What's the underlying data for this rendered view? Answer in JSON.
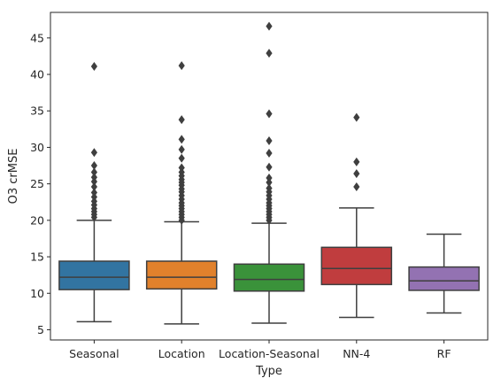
{
  "chart_data": {
    "type": "box",
    "xlabel": "Type",
    "ylabel": "O3 crMSE",
    "ylim": [
      3.6,
      48.5
    ],
    "yticks": [
      5,
      10,
      15,
      20,
      25,
      30,
      35,
      40,
      45
    ],
    "grid": false,
    "legend": "none",
    "series": [
      {
        "category": "Seasonal",
        "color": "#3274a1",
        "whisker_low": 6.1,
        "q1": 10.5,
        "median": 12.2,
        "q3": 14.4,
        "whisker_high": 20.0,
        "outliers": [
          41.1,
          29.3,
          27.5,
          26.6,
          25.9,
          25.3,
          24.6,
          23.8,
          23.2,
          22.6,
          22.1,
          21.6,
          21.2,
          20.8,
          20.4
        ]
      },
      {
        "category": "Location",
        "color": "#e1812c",
        "whisker_low": 5.8,
        "q1": 10.6,
        "median": 12.2,
        "q3": 14.4,
        "whisker_high": 19.8,
        "outliers": [
          41.2,
          33.8,
          31.1,
          29.7,
          28.5,
          27.2,
          26.6,
          26.1,
          25.6,
          25.2,
          24.8,
          24.3,
          23.9,
          23.4,
          22.9,
          22.4,
          22.0,
          21.6,
          21.2,
          20.8,
          20.4,
          20.0
        ]
      },
      {
        "category": "Location-Seasonal",
        "color": "#3a923a",
        "whisker_low": 5.9,
        "q1": 10.3,
        "median": 11.9,
        "q3": 14.0,
        "whisker_high": 19.6,
        "outliers": [
          46.6,
          42.9,
          34.6,
          30.9,
          29.2,
          27.3,
          25.8,
          25.2,
          24.4,
          23.9,
          23.4,
          22.9,
          22.4,
          22.0,
          21.6,
          21.2,
          20.8,
          20.4,
          20.0
        ]
      },
      {
        "category": "NN-4",
        "color": "#c03d3e",
        "whisker_low": 6.7,
        "q1": 11.2,
        "median": 13.4,
        "q3": 16.3,
        "whisker_high": 21.7,
        "outliers": [
          34.1,
          28.0,
          26.4,
          24.6
        ]
      },
      {
        "category": "RF",
        "color": "#9372b2",
        "whisker_low": 7.3,
        "q1": 10.4,
        "median": 11.7,
        "q3": 13.6,
        "whisker_high": 18.1,
        "outliers": []
      }
    ]
  }
}
